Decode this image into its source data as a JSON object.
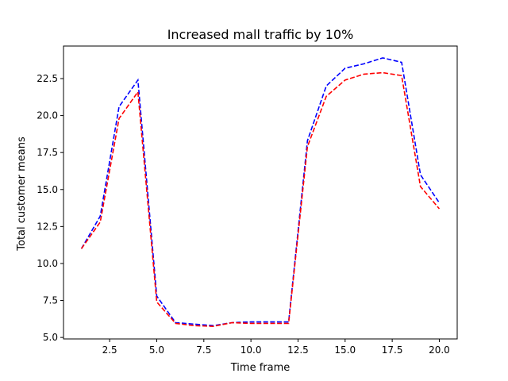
{
  "chart_data": {
    "type": "line",
    "title": "Increased mall traffic by 10%",
    "xlabel": "Time frame",
    "ylabel": "Total customer means",
    "xlim": [
      0.05,
      20.95
    ],
    "ylim": [
      4.9,
      24.7
    ],
    "xticks": [
      2.5,
      5.0,
      7.5,
      10.0,
      12.5,
      15.0,
      17.5,
      20.0
    ],
    "yticks": [
      5.0,
      7.5,
      10.0,
      12.5,
      15.0,
      17.5,
      20.0,
      22.5
    ],
    "xtick_labels": [
      "2.5",
      "5.0",
      "7.5",
      "10.0",
      "12.5",
      "15.0",
      "17.5",
      "20.0"
    ],
    "ytick_labels": [
      "5.0",
      "7.5",
      "10.0",
      "12.5",
      "15.0",
      "17.5",
      "20.0",
      "22.5"
    ],
    "grid": false,
    "x": [
      1,
      2,
      3,
      4,
      5,
      6,
      7,
      8,
      9,
      10,
      11,
      12,
      13,
      14,
      15,
      16,
      17,
      18,
      19,
      20
    ],
    "series": [
      {
        "color": "#0000ff",
        "linestyle": "dashed",
        "values": [
          11.0,
          13.2,
          20.6,
          22.4,
          7.8,
          6.0,
          5.9,
          5.8,
          6.0,
          6.05,
          6.05,
          6.05,
          18.3,
          22.0,
          23.2,
          23.5,
          23.9,
          23.6,
          16.0,
          14.1
        ]
      },
      {
        "color": "#ff0000",
        "linestyle": "dashed",
        "values": [
          11.0,
          12.8,
          19.8,
          21.6,
          7.4,
          5.95,
          5.8,
          5.75,
          6.0,
          5.95,
          5.95,
          5.95,
          17.9,
          21.3,
          22.4,
          22.8,
          22.9,
          22.7,
          15.2,
          13.7
        ]
      }
    ]
  }
}
